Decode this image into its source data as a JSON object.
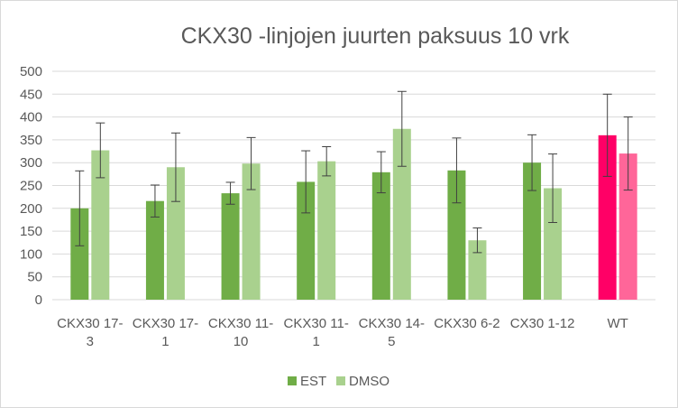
{
  "chart_data": {
    "type": "bar",
    "title": "CKX30 -linjojen juurten paksuus 10 vrk",
    "xlabel": "",
    "ylabel": "",
    "ylim": [
      0,
      500
    ],
    "yticks": [
      0,
      50,
      100,
      150,
      200,
      250,
      300,
      350,
      400,
      450,
      500
    ],
    "grid": true,
    "legend": "bottom",
    "categories": [
      [
        "CKX30 17-",
        "3"
      ],
      [
        "CKX30 17-",
        "1"
      ],
      [
        "CKX30 11-",
        "10"
      ],
      [
        "CKX30 11-",
        "1"
      ],
      [
        "CKX30 14-",
        "5"
      ],
      [
        "CKX30 6-2"
      ],
      [
        "CX30 1-12"
      ],
      [
        "WT"
      ]
    ],
    "series": [
      {
        "name": "EST",
        "color": "#70ad47",
        "values": [
          200,
          216,
          233,
          258,
          279,
          283,
          300,
          360
        ],
        "error": [
          82,
          35,
          24,
          68,
          45,
          71,
          61,
          90
        ],
        "point_colors": [
          "#70ad47",
          "#70ad47",
          "#70ad47",
          "#70ad47",
          "#70ad47",
          "#70ad47",
          "#70ad47",
          "#ff0066"
        ]
      },
      {
        "name": "DMSO",
        "color": "#a9d18e",
        "values": [
          327,
          290,
          298,
          303,
          374,
          130,
          244,
          320
        ],
        "error": [
          60,
          75,
          57,
          32,
          82,
          27,
          75,
          80
        ],
        "point_colors": [
          "#a9d18e",
          "#a9d18e",
          "#a9d18e",
          "#a9d18e",
          "#a9d18e",
          "#a9d18e",
          "#a9d18e",
          "#ff6699"
        ]
      }
    ]
  }
}
